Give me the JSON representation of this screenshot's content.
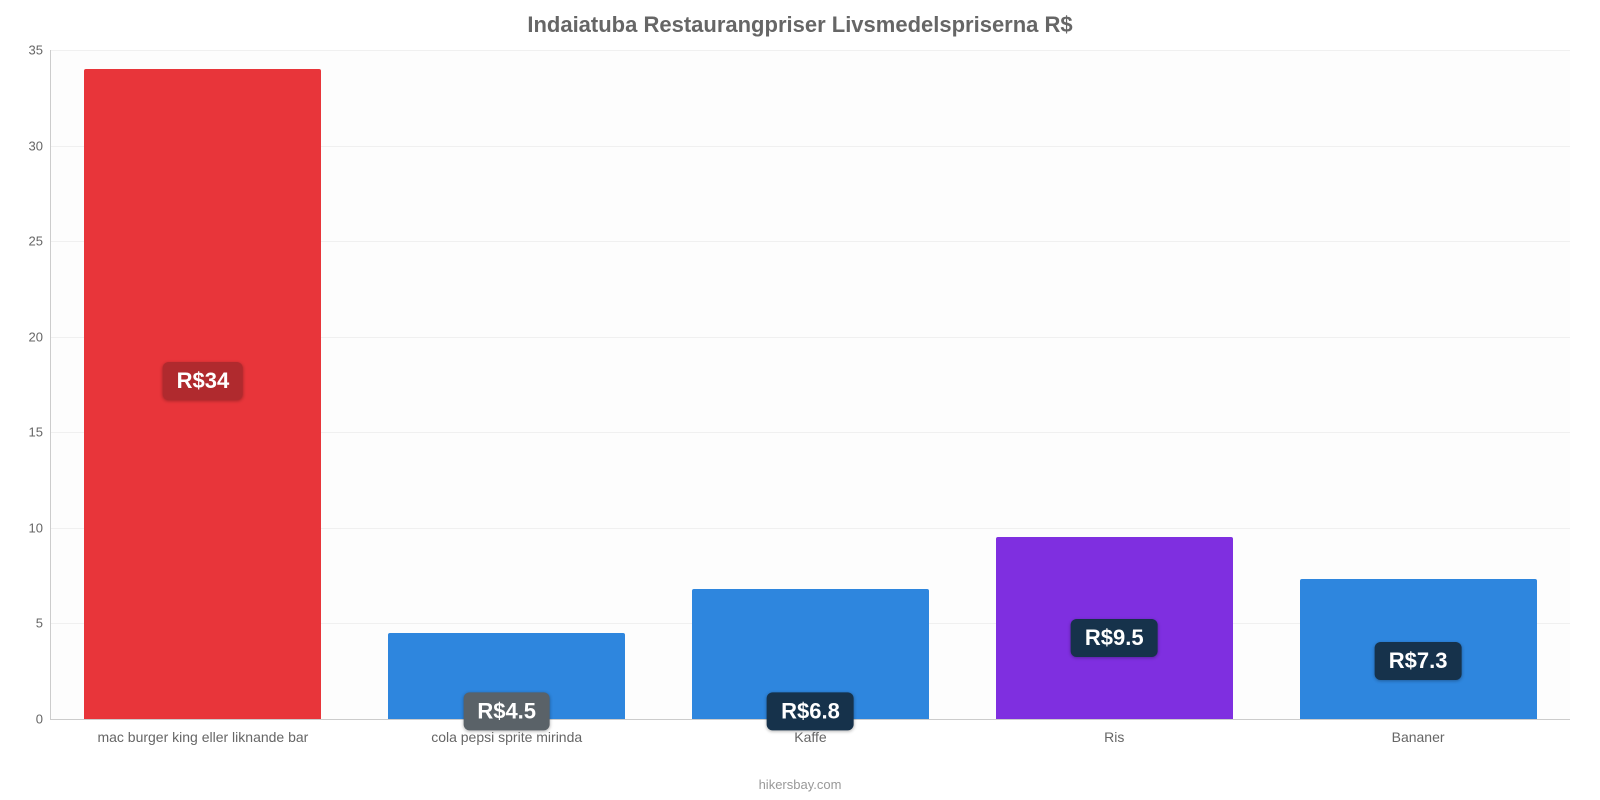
{
  "chart": {
    "type": "bar",
    "title": "Indaiatuba Restaurangpriser Livsmedelspriserna R$",
    "title_fontsize": 22,
    "title_color": "#666666",
    "background_color": "#ffffff",
    "plot_background_color": "#fdfdfd",
    "axis_color": "#cccccc",
    "grid_color": "#f0f0f0",
    "tick_color": "#666666",
    "tick_fontsize": 13,
    "xlabel_fontsize": 14,
    "ylim": [
      0,
      35
    ],
    "ytick_step": 5,
    "yticks": [
      "0",
      "5",
      "10",
      "15",
      "20",
      "25",
      "30",
      "35"
    ],
    "bar_width_pct": 78,
    "value_badge": {
      "bg": "#16324b",
      "color": "#ffffff",
      "fontsize": 22,
      "radius": 6
    },
    "categories": [
      "mac burger king eller liknande bar",
      "cola pepsi sprite mirinda",
      "Kaffe",
      "Ris",
      "Bananer"
    ],
    "values": [
      34,
      4.5,
      6.8,
      9.5,
      7.3
    ],
    "value_labels": [
      "R$34",
      "R$4.5",
      "R$6.8",
      "R$9.5",
      "R$7.3"
    ],
    "bar_colors": [
      "#e8353a",
      "#2e86de",
      "#2e86de",
      "#7f2fe0",
      "#2e86de"
    ],
    "badge_bg_overrides": [
      "#b02a2e",
      "#5a6268",
      "#16324b",
      "#16324b",
      "#16324b"
    ],
    "source": "hikersbay.com"
  }
}
